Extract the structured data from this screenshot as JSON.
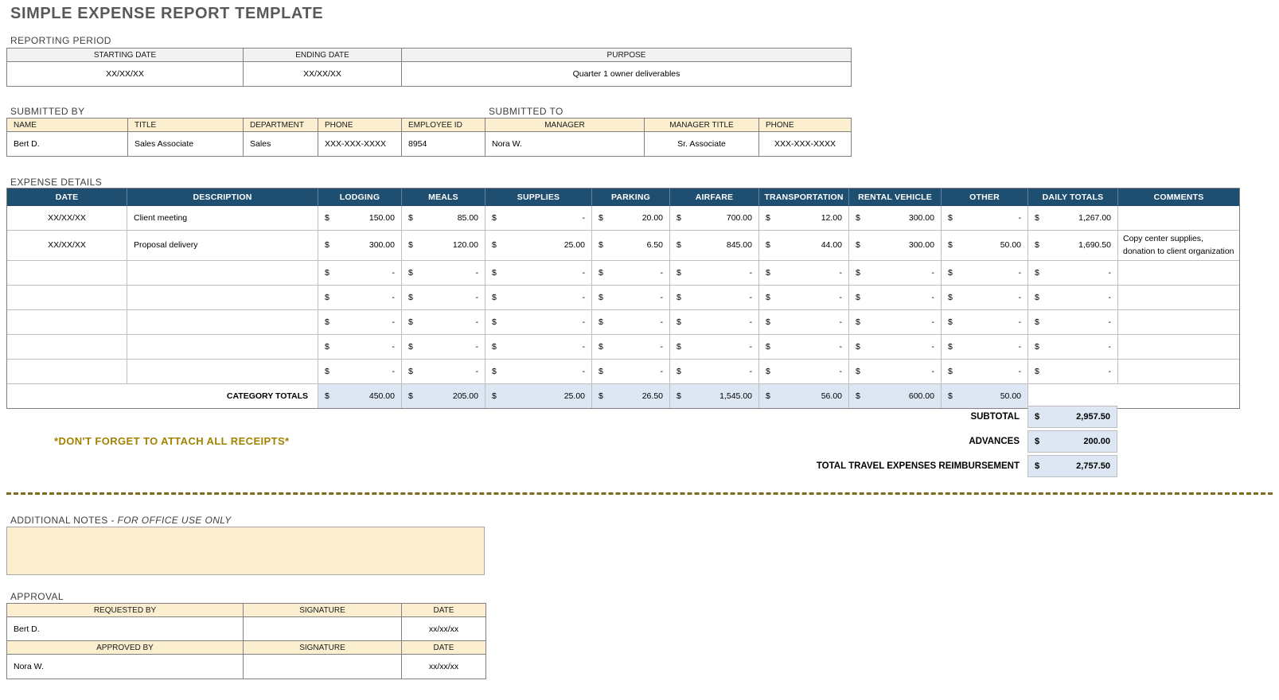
{
  "page": {
    "title": "SIMPLE EXPENSE REPORT TEMPLATE"
  },
  "reporting_period": {
    "label": "REPORTING PERIOD",
    "headers": [
      "STARTING DATE",
      "ENDING DATE",
      "PURPOSE"
    ],
    "values": [
      "XX/XX/XX",
      "XX/XX/XX",
      "Quarter 1 owner deliverables"
    ]
  },
  "submitted_by": {
    "label": "SUBMITTED BY",
    "headers": [
      "NAME",
      "TITLE",
      "DEPARTMENT",
      "PHONE",
      "EMPLOYEE ID"
    ],
    "values": [
      "Bert D.",
      "Sales Associate",
      "Sales",
      "XXX-XXX-XXXX",
      "8954"
    ]
  },
  "submitted_to": {
    "label": "SUBMITTED TO",
    "headers": [
      "MANAGER",
      "MANAGER TITLE",
      "PHONE"
    ],
    "values": [
      "Nora W.",
      "Sr. Associate",
      "XXX-XXX-XXXX"
    ]
  },
  "expense_details": {
    "label": "EXPENSE DETAILS",
    "currency": "$",
    "columns": [
      "DATE",
      "DESCRIPTION",
      "LODGING",
      "MEALS",
      "SUPPLIES",
      "PARKING",
      "AIRFARE",
      "TRANSPORTATION",
      "RENTAL VEHICLE",
      "OTHER",
      "DAILY TOTALS",
      "COMMENTS"
    ],
    "money_keys": [
      "lodging",
      "meals",
      "supplies",
      "parking",
      "airfare",
      "transportation",
      "rental-vehicle",
      "other",
      "daily-totals"
    ],
    "rows": [
      {
        "date": "XX/XX/XX",
        "description": "Client meeting",
        "amounts": [
          "150.00",
          "85.00",
          "-",
          "20.00",
          "700.00",
          "12.00",
          "300.00",
          "-",
          "1,267.00"
        ],
        "comment": ""
      },
      {
        "date": "XX/XX/XX",
        "description": "Proposal delivery",
        "amounts": [
          "300.00",
          "120.00",
          "25.00",
          "6.50",
          "845.00",
          "44.00",
          "300.00",
          "50.00",
          "1,690.50"
        ],
        "comment": "Copy center supplies, donation to client organization"
      },
      {
        "date": "",
        "description": "",
        "amounts": [
          "-",
          "-",
          "-",
          "-",
          "-",
          "-",
          "-",
          "-",
          "-"
        ],
        "comment": ""
      },
      {
        "date": "",
        "description": "",
        "amounts": [
          "-",
          "-",
          "-",
          "-",
          "-",
          "-",
          "-",
          "-",
          "-"
        ],
        "comment": ""
      },
      {
        "date": "",
        "description": "",
        "amounts": [
          "-",
          "-",
          "-",
          "-",
          "-",
          "-",
          "-",
          "-",
          "-"
        ],
        "comment": ""
      },
      {
        "date": "",
        "description": "",
        "amounts": [
          "-",
          "-",
          "-",
          "-",
          "-",
          "-",
          "-",
          "-",
          "-"
        ],
        "comment": ""
      },
      {
        "date": "",
        "description": "",
        "amounts": [
          "-",
          "-",
          "-",
          "-",
          "-",
          "-",
          "-",
          "-",
          "-"
        ],
        "comment": ""
      }
    ],
    "category_totals": {
      "label": "CATEGORY TOTALS",
      "amounts": [
        "450.00",
        "205.00",
        "25.00",
        "26.50",
        "1,545.00",
        "56.00",
        "600.00",
        "50.00"
      ]
    }
  },
  "summary": {
    "currency": "$",
    "rows": [
      {
        "label": "SUBTOTAL",
        "amount": "2,957.50"
      },
      {
        "label": "ADVANCES",
        "amount": "200.00"
      },
      {
        "label": "TOTAL TRAVEL EXPENSES REIMBURSEMENT",
        "amount": "2,757.50"
      }
    ]
  },
  "receipts_note": "*DON'T FORGET TO ATTACH ALL RECEIPTS*",
  "notes": {
    "label": "ADDITIONAL NOTES",
    "label_suffix": "- FOR OFFICE USE ONLY",
    "value": ""
  },
  "approval": {
    "label": "APPROVAL",
    "sections": [
      {
        "role_header": "REQUESTED BY",
        "signature_header": "SIGNATURE",
        "date_header": "DATE",
        "name": "Bert D.",
        "signature": "",
        "date": "xx/xx/xx"
      },
      {
        "role_header": "APPROVED BY",
        "signature_header": "SIGNATURE",
        "date_header": "DATE",
        "name": "Nora W.",
        "signature": "",
        "date": "xx/xx/xx"
      }
    ]
  },
  "colors": {
    "header_navy": "#1e4e70",
    "band_tan": "#fbefd0",
    "total_blue": "#dce7f3",
    "accent_gold": "#a28200",
    "divider_gold": "#7d6b1e",
    "title_gray": "#595959"
  }
}
